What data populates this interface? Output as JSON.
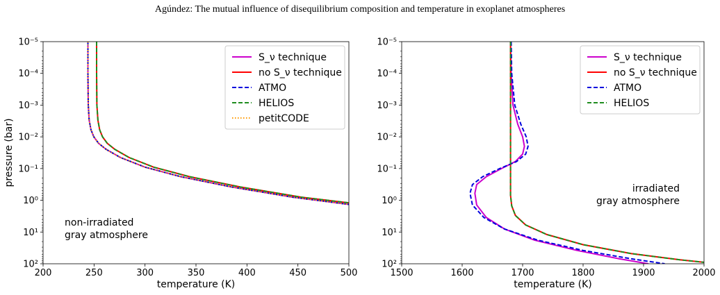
{
  "header": "Agúndez: The mutual influence of disequilibrium composition and temperature in exoplanet atmospheres",
  "chart_data": [
    {
      "type": "line",
      "xlabel": "temperature (K)",
      "ylabel": "pressure (bar)",
      "xlim": [
        200,
        500
      ],
      "ylim": [
        1e-05,
        100
      ],
      "yscale": "log",
      "y_inverted": true,
      "x_ticks": [
        "200",
        "250",
        "300",
        "350",
        "400",
        "450",
        "500"
      ],
      "y_ticks": [
        "10⁻⁵",
        "10⁻⁴",
        "10⁻³",
        "10⁻²",
        "10⁻¹",
        "10⁰",
        "10¹",
        "10²"
      ],
      "legend_position": "top-right",
      "annotation": [
        "non-irradiated",
        "gray atmosphere"
      ],
      "series": [
        {
          "name": "S_ν technique",
          "color": "#cc00cc",
          "dash": "solid",
          "x": [
            244,
            244,
            244.3,
            245.2,
            247,
            249.8,
            254.5,
            262,
            276,
            300,
            335,
            385,
            445,
            500
          ],
          "y": [
            1e-05,
            0.0001,
            0.001,
            0.003,
            0.006,
            0.01,
            0.016,
            0.025,
            0.045,
            0.09,
            0.18,
            0.38,
            0.8,
            1.35
          ]
        },
        {
          "name": "no S_ν technique",
          "color": "#ff0000",
          "dash": "solid",
          "x": [
            252.5,
            252.5,
            252.8,
            253.8,
            255.5,
            258.3,
            263,
            270.5,
            284.5,
            308.5,
            343.5,
            393.5,
            453.5,
            500
          ],
          "y": [
            1e-05,
            0.0001,
            0.001,
            0.003,
            0.006,
            0.01,
            0.016,
            0.025,
            0.045,
            0.09,
            0.18,
            0.38,
            0.8,
            1.2
          ]
        },
        {
          "name": "ATMO",
          "color": "#0000dd",
          "dash": "dashed",
          "x": [
            244,
            244,
            244.3,
            245.2,
            247,
            249.8,
            254.5,
            262,
            276,
            300,
            335,
            385,
            445,
            500
          ],
          "y": [
            1e-05,
            0.0001,
            0.001,
            0.003,
            0.006,
            0.01,
            0.016,
            0.025,
            0.045,
            0.09,
            0.18,
            0.38,
            0.8,
            1.35
          ]
        },
        {
          "name": "HELIOS",
          "color": "#1e8c1e",
          "dash": "dashed",
          "x": [
            252.5,
            252.5,
            252.8,
            253.8,
            255.5,
            258.3,
            263,
            270.5,
            284.5,
            308.5,
            343.5,
            393.5,
            453.5,
            500
          ],
          "y": [
            1e-05,
            0.0001,
            0.001,
            0.003,
            0.006,
            0.01,
            0.016,
            0.025,
            0.045,
            0.09,
            0.18,
            0.38,
            0.8,
            1.2
          ]
        },
        {
          "name": "petitCODE",
          "color": "#ff9900",
          "dash": "dotted",
          "x": [
            244,
            244,
            244.3,
            245.2,
            247,
            249.8,
            254.5,
            262,
            276,
            300,
            335,
            385,
            445,
            500
          ],
          "y": [
            1e-05,
            0.0001,
            0.001,
            0.003,
            0.006,
            0.01,
            0.016,
            0.025,
            0.045,
            0.09,
            0.18,
            0.38,
            0.8,
            1.35
          ]
        }
      ]
    },
    {
      "type": "line",
      "xlabel": "temperature (K)",
      "ylabel": "",
      "xlim": [
        1500,
        2000
      ],
      "ylim": [
        1e-05,
        100
      ],
      "yscale": "log",
      "y_inverted": true,
      "x_ticks": [
        "1500",
        "1600",
        "1700",
        "1800",
        "1900",
        "2000"
      ],
      "y_ticks": [
        "10⁻⁵",
        "10⁻⁴",
        "10⁻³",
        "10⁻²",
        "10⁻¹",
        "10⁰",
        "10¹",
        "10²"
      ],
      "legend_position": "top-right",
      "annotation": [
        "irradiated",
        "gray atmosphere"
      ],
      "series": [
        {
          "name": "S_ν technique",
          "color": "#cc00cc",
          "dash": "solid",
          "x": [
            1680,
            1681,
            1684,
            1692,
            1700,
            1703,
            1700,
            1688,
            1665,
            1640,
            1624,
            1621,
            1624,
            1640,
            1670,
            1720,
            1790,
            1860,
            1908
          ],
          "y": [
            1e-05,
            0.0001,
            0.001,
            0.004,
            0.01,
            0.02,
            0.035,
            0.06,
            0.1,
            0.18,
            0.32,
            0.6,
            1.4,
            3.5,
            8,
            18,
            38,
            70,
            100
          ]
        },
        {
          "name": "no S_ν technique",
          "color": "#ff0000",
          "dash": "solid",
          "x": [
            1680,
            1680,
            1680,
            1680,
            1680,
            1680,
            1682,
            1688,
            1705,
            1740,
            1800,
            1880,
            1960,
            2000
          ],
          "y": [
            1e-05,
            0.0001,
            0.001,
            0.01,
            0.1,
            0.7,
            1.5,
            3,
            6,
            12,
            25,
            48,
            75,
            90
          ]
        },
        {
          "name": "ATMO",
          "color": "#0000dd",
          "dash": "dashed",
          "x": [
            1681,
            1682,
            1687,
            1697,
            1706,
            1709,
            1705,
            1690,
            1662,
            1634,
            1617,
            1613,
            1617,
            1636,
            1670,
            1725,
            1800,
            1880,
            1935
          ],
          "y": [
            1e-05,
            0.0001,
            0.001,
            0.004,
            0.01,
            0.02,
            0.035,
            0.06,
            0.1,
            0.18,
            0.32,
            0.6,
            1.4,
            3.5,
            8,
            18,
            38,
            70,
            100
          ]
        },
        {
          "name": "HELIOS",
          "color": "#1e8c1e",
          "dash": "dashed",
          "x": [
            1680,
            1680,
            1680,
            1680,
            1680,
            1680,
            1682,
            1688,
            1705,
            1740,
            1800,
            1880,
            1960,
            2000
          ],
          "y": [
            1e-05,
            0.0001,
            0.001,
            0.01,
            0.1,
            0.7,
            1.5,
            3,
            6,
            12,
            25,
            48,
            75,
            90
          ]
        }
      ]
    }
  ]
}
